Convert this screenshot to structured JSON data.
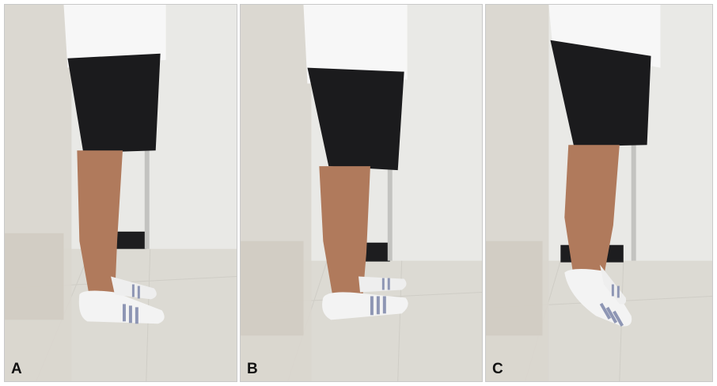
{
  "panels": [
    {
      "label": "A"
    },
    {
      "label": "B"
    },
    {
      "label": "C"
    }
  ],
  "colors": {
    "wall": "#e9e9e6",
    "floor": "#dcdad3",
    "shorts": "#1b1b1d",
    "shirt": "#f7f7f7",
    "skin": "#b07a5c",
    "sock": "#f3f3f3",
    "sock_stripe": "#8e96b4",
    "reflection": "#d7d4cc",
    "baseboard": "#1d1d1f"
  }
}
